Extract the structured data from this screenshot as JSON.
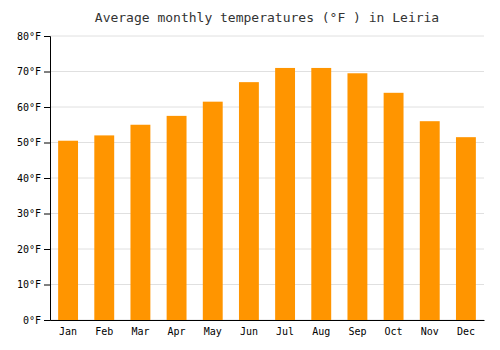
{
  "chart_data": {
    "type": "bar",
    "title": "Average monthly temperatures (°F ) in Leiria",
    "categories": [
      "Jan",
      "Feb",
      "Mar",
      "Apr",
      "May",
      "Jun",
      "Jul",
      "Aug",
      "Sep",
      "Oct",
      "Nov",
      "Dec"
    ],
    "values": [
      50.5,
      52.0,
      55.0,
      57.5,
      61.5,
      67.0,
      71.0,
      71.0,
      69.5,
      64.0,
      56.0,
      51.5
    ],
    "color": "#FF9500",
    "ylim": [
      0,
      80
    ],
    "yticks": [
      {
        "value": 0,
        "label": "0°F"
      },
      {
        "value": 10,
        "label": "10°F"
      },
      {
        "value": 20,
        "label": "20°F"
      },
      {
        "value": 30,
        "label": "30°F"
      },
      {
        "value": 40,
        "label": "40°F"
      },
      {
        "value": 50,
        "label": "50°F"
      },
      {
        "value": 60,
        "label": "60°F"
      },
      {
        "value": 70,
        "label": "70°F"
      },
      {
        "value": 80,
        "label": "80°F"
      }
    ],
    "grid": true
  }
}
